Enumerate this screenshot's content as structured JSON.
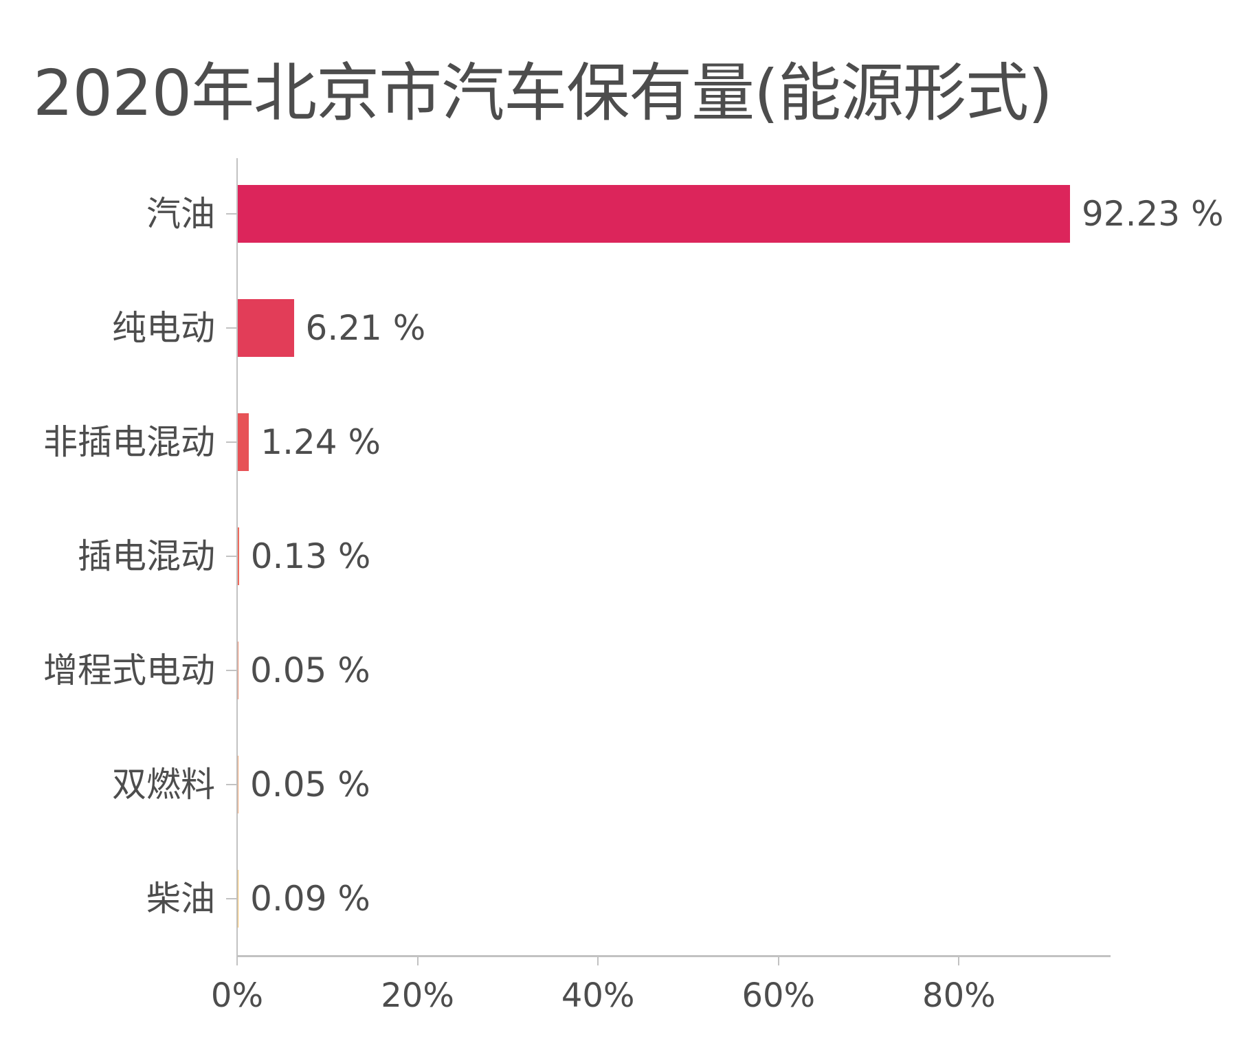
{
  "chart_data": {
    "type": "bar",
    "orientation": "horizontal",
    "title": "2020年北京市汽车保有量(能源形式)",
    "xlabel": "",
    "ylabel": "",
    "categories": [
      "汽油",
      "纯电动",
      "非插电混动",
      "插电混动",
      "增程式电动",
      "双燃料",
      "柴油"
    ],
    "values": [
      92.23,
      6.21,
      1.24,
      0.13,
      0.05,
      0.05,
      0.09
    ],
    "value_labels": [
      "92.23 %",
      "6.21 %",
      "1.24 %",
      "0.13 %",
      "0.05 %",
      "0.05 %",
      "0.09 %"
    ],
    "colors": [
      "#dc255b",
      "#e23d58",
      "#e75256",
      "#ee6a5c",
      "#eb8f72",
      "#f0a97a",
      "#f4c06a"
    ],
    "x_ticks": [
      0,
      20,
      40,
      60,
      80
    ],
    "x_tick_labels": [
      "0%",
      "20%",
      "40%",
      "60%",
      "80%"
    ],
    "xlim": [
      0,
      97.7
    ],
    "grid": false,
    "legend": "none"
  },
  "title": "2020年北京市汽车保有量(能源形式)",
  "axis_color": "#c2c2c2",
  "text_color": "#4d4d4d"
}
